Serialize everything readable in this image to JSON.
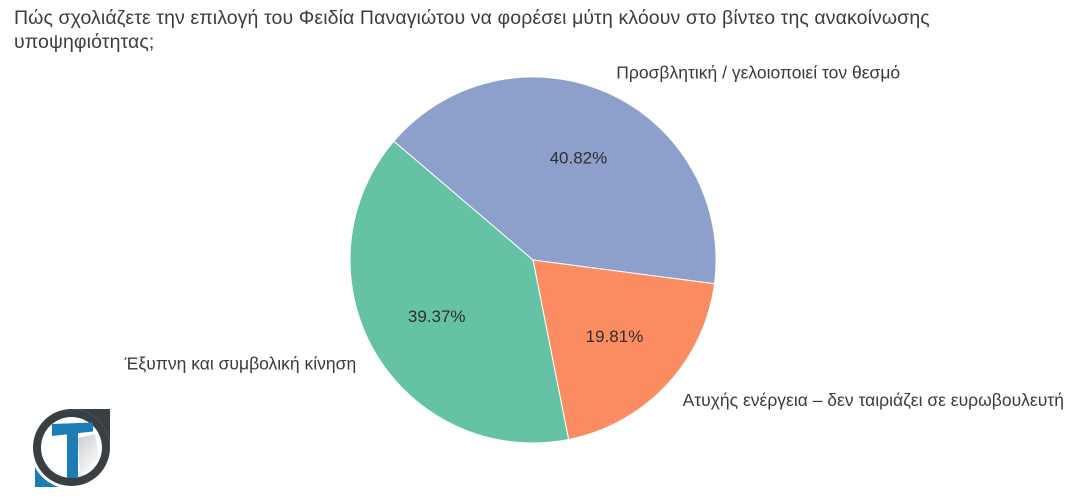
{
  "chart_data": {
    "type": "pie",
    "title": "Πώς σχολιάζετε την επιλογή του Φειδία Παναγιώτου να φορέσει μύτη κλόουν στο βίντεο της ανακοίνωσης υποψηφιότητας;",
    "labels_position": "outside",
    "legend": "none",
    "start_angle_deg": 139.5,
    "direction": "clockwise",
    "slices": [
      {
        "label": "Προσβλητική / γελοιοποιεί τον θεσμό",
        "value": 40.82,
        "pct_label": "40.82%",
        "color": "#8da0cb"
      },
      {
        "label": "Ατυχής ενέργεια – δεν ταιριάζει σε ευρωβουλευτή",
        "value": 19.81,
        "pct_label": "19.81%",
        "color": "#fc8d62"
      },
      {
        "label": "Έξυπνη και συμβολική κίνηση",
        "value": 39.37,
        "pct_label": "39.37%",
        "color": "#66c2a5"
      }
    ]
  },
  "logo": {
    "letter": "T",
    "dark_color": "#3a3f44",
    "blue_color": "#1b7db4"
  }
}
